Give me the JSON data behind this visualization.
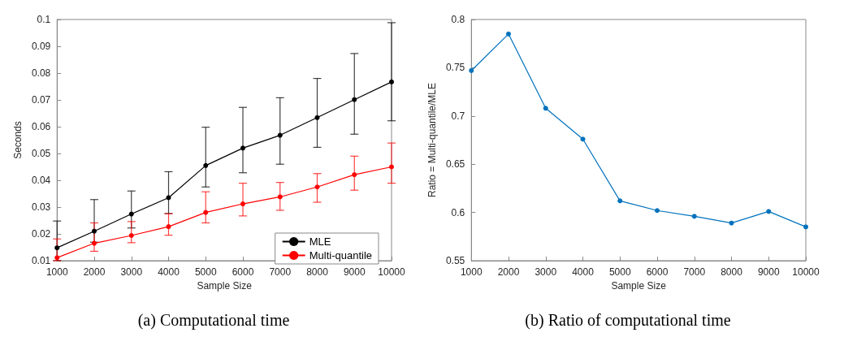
{
  "chart_data": [
    {
      "type": "line",
      "title": "(a) Computational time",
      "xlabel": "Sample Size",
      "ylabel": "Seconds",
      "x": [
        1000,
        2000,
        3000,
        4000,
        5000,
        6000,
        7000,
        8000,
        9000,
        10000
      ],
      "series": [
        {
          "name": "MLE",
          "color": "#000000",
          "values": [
            0.0148,
            0.021,
            0.0274,
            0.0335,
            0.0455,
            0.052,
            0.0568,
            0.0634,
            0.0701,
            0.0767
          ],
          "errors": [
            [
              0.01,
              0.0248
            ],
            [
              0.0169,
              0.0328
            ],
            [
              0.0222,
              0.036
            ],
            [
              0.0276,
              0.0432
            ],
            [
              0.0375,
              0.0598
            ],
            [
              0.0428,
              0.0672
            ],
            [
              0.046,
              0.0708
            ],
            [
              0.0523,
              0.078
            ],
            [
              0.0572,
              0.0873
            ],
            [
              0.0622,
              0.0988
            ]
          ]
        },
        {
          "name": "Multi-quantile",
          "color": "#ff0000",
          "values": [
            0.0111,
            0.0165,
            0.0194,
            0.0227,
            0.028,
            0.0312,
            0.0338,
            0.0375,
            0.0421,
            0.045
          ],
          "errors": [
            [
              0.01,
              0.0181
            ],
            [
              0.0135,
              0.0241
            ],
            [
              0.0167,
              0.0246
            ],
            [
              0.0195,
              0.0275
            ],
            [
              0.0241,
              0.0357
            ],
            [
              0.0267,
              0.0389
            ],
            [
              0.0288,
              0.0392
            ],
            [
              0.0318,
              0.0425
            ],
            [
              0.0363,
              0.049
            ],
            [
              0.0389,
              0.0539
            ]
          ]
        }
      ],
      "xlim": [
        1000,
        10000
      ],
      "xticks": [
        1000,
        2000,
        3000,
        4000,
        5000,
        6000,
        7000,
        8000,
        9000,
        10000
      ],
      "ylim": [
        0.01,
        0.1
      ],
      "yticks": [
        0.01,
        0.02,
        0.03,
        0.04,
        0.05,
        0.06,
        0.07,
        0.08,
        0.09,
        0.1
      ],
      "legend": "bottom right",
      "marker": "circle",
      "line_style": "solid"
    },
    {
      "type": "line",
      "title": "(b) Ratio of computational time",
      "xlabel": "Sample Size",
      "ylabel": "Ratio = Multi-quantile/MLE",
      "x": [
        1000,
        2000,
        3000,
        4000,
        5000,
        6000,
        7000,
        8000,
        9000,
        10000
      ],
      "series": [
        {
          "color": "#0072bd",
          "values": [
            0.747,
            0.785,
            0.708,
            0.676,
            0.612,
            0.602,
            0.596,
            0.589,
            0.601,
            0.585
          ]
        }
      ],
      "xlim": [
        1000,
        10000
      ],
      "xticks": [
        1000,
        2000,
        3000,
        4000,
        5000,
        6000,
        7000,
        8000,
        9000,
        10000
      ],
      "ylim": [
        0.55,
        0.8
      ],
      "yticks": [
        0.55,
        0.6,
        0.65,
        0.7,
        0.75,
        0.8
      ],
      "legend": false,
      "marker": "circle",
      "line_style": "solid"
    }
  ]
}
